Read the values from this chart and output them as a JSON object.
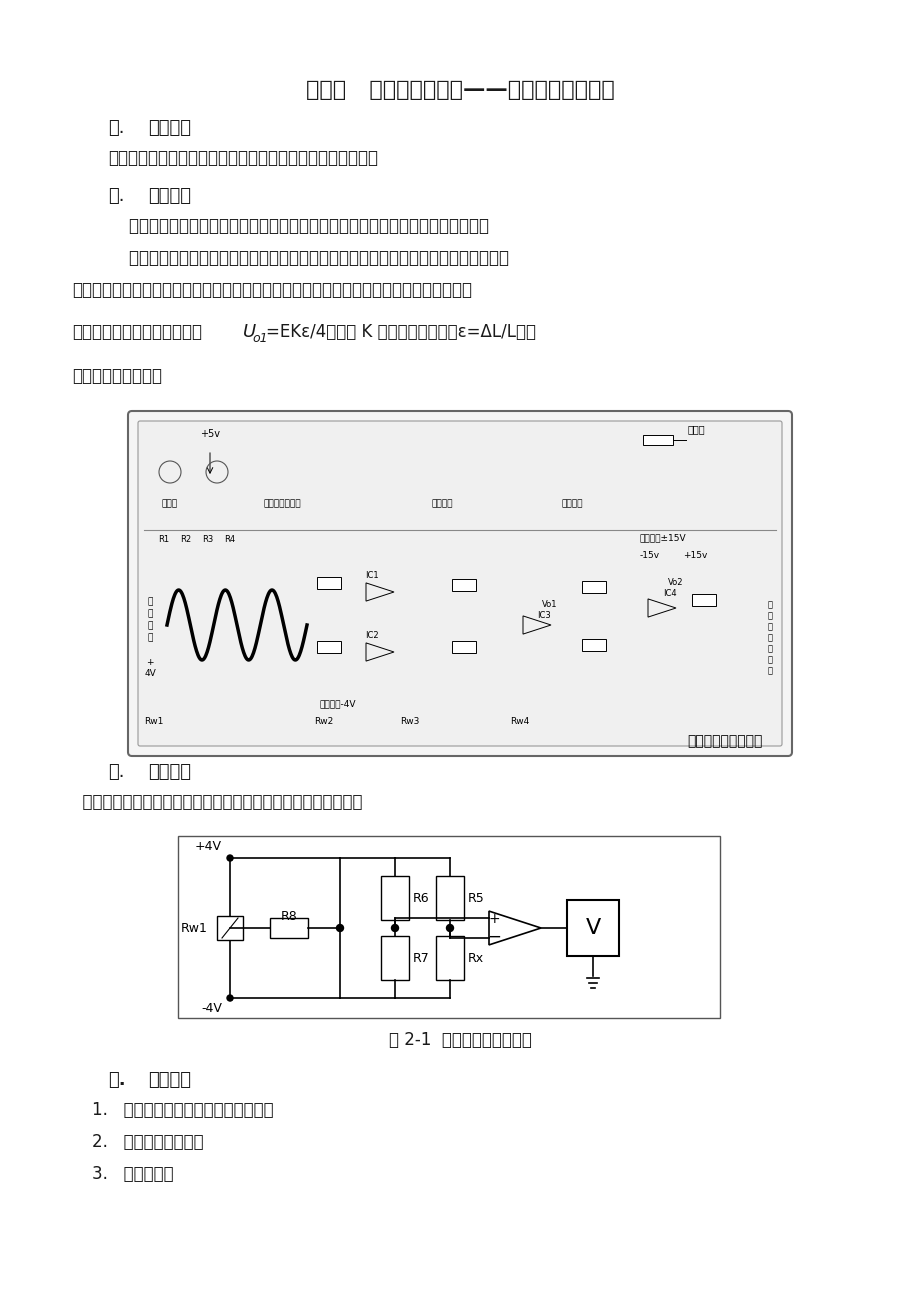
{
  "title": "试验一   金属箔式应变片——单臂电桥性能实验",
  "sec1_num": "一.",
  "sec1_title": "实验目的",
  "sec1_body": "了解金属箔式应变片的应变效应及单臂电桥工作原理和性能。",
  "sec2_num": "二.",
  "sec2_title": "基本原理",
  "sec2_p1": "    电阻丝在外力作用下发生机械形变时，其电阻值发生变化，这就是电阻应变效应。",
  "sec2_p2": "    金属箔式应变片就是通过光刻、腐蚀等工艺制成的应变敏感元件，通过它反映被测部位",
  "sec2_p2b": "受力状态的变化。电桥的作用是完成电阻到电压的比例变化，电桥的输出电压反映了相应的",
  "sec2_p3a": "受力状态。单臂电桥输出电压",
  "sec2_p3b": "=EKε/4，其中 K 为应变灵敏系数，ε=ΔL/L为电",
  "sec2_p4": "阻丝长度相对变化。",
  "sec3_num": "三.",
  "sec3_title": "实验器材",
  "sec3_body": "  主机箱、应变传感器实验模板、托盘、砝码、万用表、导线等。",
  "fig_caption": "图 2-1  单臂电桥工作原理图",
  "sec4_num": "四.",
  "sec4_title": "实验步骤",
  "sec4_items": [
    "1.   根据上图示接线示意图安装接线。",
    "2.   放大器输出调零。",
    "3.   电桥调零。"
  ],
  "bg_color": "#ffffff",
  "text_color": "#1a1a1a"
}
